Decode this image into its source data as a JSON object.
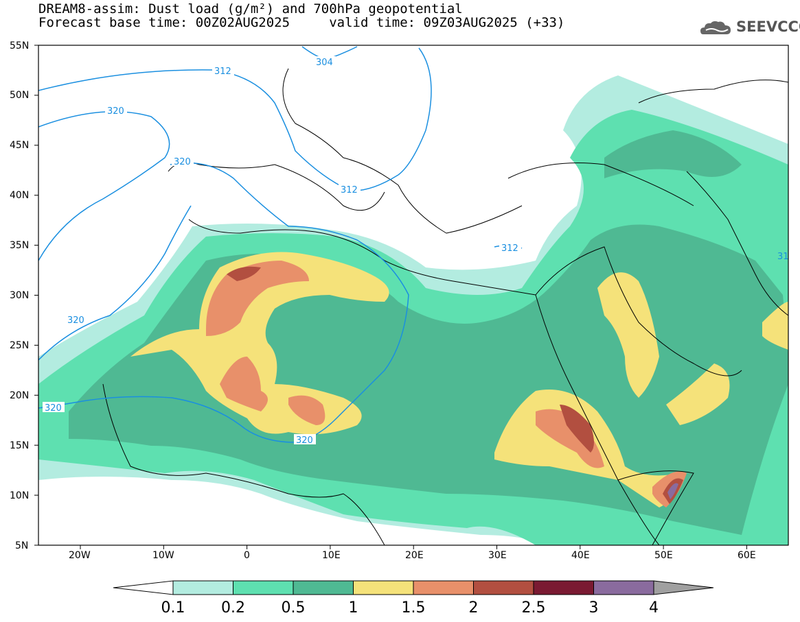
{
  "title": {
    "line1": "DREAM8-assim: Dust load (g/m²) and 700hPa geopotential",
    "line2": "Forecast base time: 00Z02AUG2025     valid time: 09Z03AUG2025 (+33)"
  },
  "logo": {
    "icon": "cloud-logo-icon",
    "text": "SEEVCCC"
  },
  "axes": {
    "lat_labels": [
      "55N",
      "50N",
      "45N",
      "40N",
      "35N",
      "30N",
      "25N",
      "20N",
      "15N",
      "10N",
      "5N"
    ],
    "lon_labels": [
      "20W",
      "10W",
      "0",
      "10E",
      "20E",
      "30E",
      "40E",
      "50E",
      "60E"
    ]
  },
  "contours": [
    {
      "label": "312",
      "id": "c312a"
    },
    {
      "label": "304",
      "id": "c304"
    },
    {
      "label": "320",
      "id": "c320a"
    },
    {
      "label": "320",
      "id": "c320b"
    },
    {
      "label": "312",
      "id": "c312b"
    },
    {
      "label": "312",
      "id": "c312c"
    },
    {
      "label": "320",
      "id": "c320c"
    },
    {
      "label": "320",
      "id": "c320d"
    },
    {
      "label": "320",
      "id": "c320e"
    },
    {
      "label": "31",
      "id": "c31"
    }
  ],
  "colorbar": {
    "labels": [
      "0.1",
      "0.2",
      "0.5",
      "1",
      "1.5",
      "2",
      "2.5",
      "3",
      "4"
    ],
    "colors": {
      "under": "#ffffff",
      "b1": "#b3ece0",
      "b2": "#5ee0b0",
      "b3": "#4fb993",
      "b4": "#f5e27a",
      "b5": "#e8906a",
      "b6": "#b24f40",
      "b7": "#7a1a32",
      "b8": "#8a6b9e",
      "over": "#a0a0a0"
    }
  }
}
